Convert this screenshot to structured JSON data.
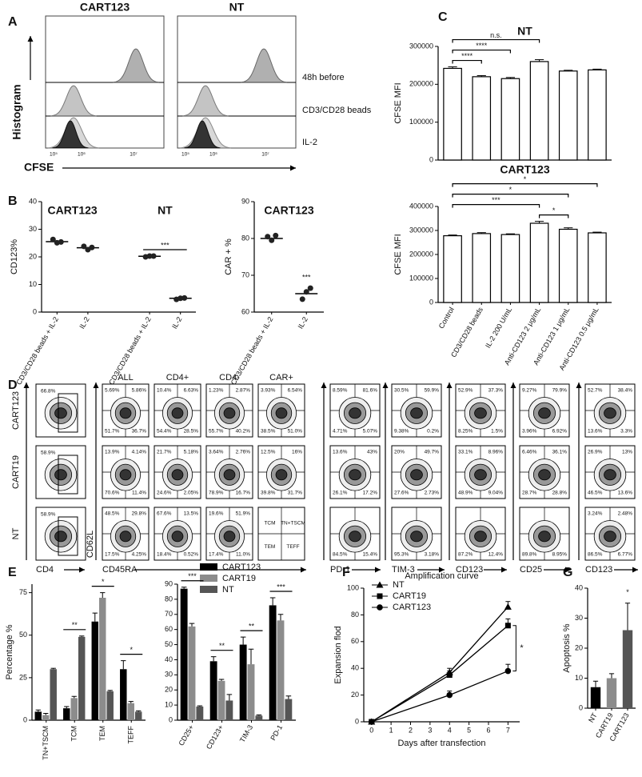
{
  "panel_labels": [
    "A",
    "B",
    "C",
    "D",
    "E",
    "F",
    "G"
  ],
  "histograms": {
    "titles": [
      "CART123",
      "NT"
    ],
    "rows": [
      "48h before",
      "CD3/CD28 beads",
      "IL-2"
    ],
    "ylabel": "Histogram",
    "xlabel": "CFSE",
    "xtick_labels": [
      "10⁵",
      "10⁶",
      "10⁷"
    ]
  },
  "flow": {
    "row_labels": [
      "CART123",
      "CART19",
      "NT"
    ],
    "column_titles": [
      "ALL",
      "CD4+",
      "CD4-",
      "CAR+"
    ],
    "gates": [
      "66.8%",
      "58.9%",
      "58.9%"
    ],
    "quadrants": [
      [
        [
          "5.69%",
          "5.86%",
          "51.7%",
          "36.7%"
        ],
        [
          "13.9%",
          "4.14%",
          "70.6%",
          "11.4%"
        ],
        [
          "48.5%",
          "29.8%",
          "17.5%",
          "4.25%"
        ]
      ],
      [
        [
          "10.4%",
          "6.63%",
          "54.4%",
          "28.5%"
        ],
        [
          "21.7%",
          "5.18%",
          "24.6%",
          "2.05%"
        ],
        [
          "67.6%",
          "13.5%",
          "18.4%",
          "0.52%"
        ]
      ],
      [
        [
          "1.23%",
          "2.87%",
          "55.7%",
          "40.2%"
        ],
        [
          "3.64%",
          "2.76%",
          "78.9%",
          "16.7%"
        ],
        [
          "19.6%",
          "51.9%",
          "17.4%",
          "11.0%"
        ]
      ],
      [
        [
          "3.93%",
          "6.54%",
          "38.5%",
          "51.0%"
        ],
        [
          "12.5%",
          "16%",
          "39.8%",
          "31.7%"
        ]
      ],
      [
        [
          "8.59%",
          "81.6%",
          "4.71%",
          "5.07%"
        ],
        [
          "13.6%",
          "43%",
          "26.1%",
          "17.2%"
        ],
        [
          "84.5%",
          "15.4%"
        ]
      ],
      [
        [
          "30.5%",
          "59.9%",
          "9.38%",
          "0.2%"
        ],
        [
          "20%",
          "49.7%",
          "27.6%",
          "2.73%"
        ],
        [
          "95.3%",
          "3.18%"
        ]
      ],
      [
        [
          "52.9%",
          "37.3%",
          "8.25%",
          "1.5%"
        ],
        [
          "33.1%",
          "8.96%",
          "48.9%",
          "9.04%"
        ],
        [
          "87.2%",
          "12.4%"
        ]
      ],
      [
        [
          "9.27%",
          "79.9%",
          "3.96%",
          "6.92%"
        ],
        [
          "6.46%",
          "36.1%",
          "28.7%",
          "28.8%"
        ],
        [
          "89.8%",
          "8.95%"
        ]
      ],
      [
        [
          "52.7%",
          "38.4%",
          "13.6%",
          "3.3%"
        ],
        [
          "26.9%",
          "13%",
          "46.5%",
          "13.6%"
        ],
        [
          "3.24%",
          "2.48%",
          "86.5%",
          "6.77%"
        ]
      ]
    ],
    "subset_legend": [
      "TCM",
      "TN+TSCM",
      "TEM",
      "TEFF"
    ],
    "x_labels": [
      "CD4",
      "CD45RA",
      "PD-1",
      "TIM-3",
      "CD123",
      "CD25",
      "CD123"
    ],
    "y_label": "CD62L"
  },
  "chart_data": [
    {
      "type": "dot",
      "ylabel": "CD123%",
      "group_labels": [
        "CART123",
        "NT"
      ],
      "categories": [
        "CD3/CD28 beads + IL-2",
        "IL-2",
        "CD3/CD28 beads + IL-2",
        "IL-2"
      ],
      "values": [
        25.5,
        23.3,
        20.2,
        5.0
      ],
      "points": [
        [
          26.3,
          25.1,
          25.4
        ],
        [
          23.8,
          22.6,
          23.4
        ],
        [
          20.0,
          20.3,
          20.3
        ],
        [
          4.6,
          5.0,
          5.1
        ]
      ],
      "ylim": [
        0,
        40
      ],
      "yticks": [
        0,
        10,
        20,
        30,
        40
      ],
      "annotations": [
        {
          "text": "***",
          "between": [
            2,
            3
          ]
        }
      ]
    },
    {
      "type": "dot",
      "title": "CART123",
      "ylabel": "CAR + %",
      "categories": [
        "CD3/CD28 beads + IL-2",
        "IL-2"
      ],
      "values": [
        80,
        65
      ],
      "points": [
        [
          80.5,
          79.5,
          80.8
        ],
        [
          63.5,
          65.5,
          66.5
        ]
      ],
      "ylim": [
        60,
        90
      ],
      "yticks": [
        60,
        70,
        80,
        90
      ],
      "annotations": [
        {
          "text": "***",
          "category": 1
        }
      ]
    },
    {
      "type": "bar",
      "title": "NT",
      "ylabel": "CFSE MFI",
      "categories": [
        null,
        null,
        null,
        null,
        null,
        null
      ],
      "values": [
        242000,
        220000,
        215000,
        260000,
        235000,
        238000
      ],
      "errors": [
        4000,
        3000,
        3000,
        5000,
        2000,
        2000
      ],
      "color": "#ffffff",
      "edgecolor": "#000000",
      "ylim": [
        0,
        300000
      ],
      "yticks": [
        0,
        100000,
        200000,
        300000
      ],
      "annotations": [
        {
          "text": "****",
          "between": [
            0,
            1
          ]
        },
        {
          "text": "****",
          "between": [
            0,
            2
          ]
        },
        {
          "text": "n.s.",
          "between": [
            0,
            3
          ]
        }
      ]
    },
    {
      "type": "bar",
      "title": "CART123",
      "ylabel": "CFSE MFI",
      "categories": [
        "Control",
        "CD3/CD28 beads",
        "IL-2 200 U/mL",
        "Anti-CD123 2 μg/mL",
        "Anti-CD123 1 μg/mL",
        "Anti-CD123 0.5 μg/mL"
      ],
      "values": [
        278000,
        287000,
        283000,
        330000,
        305000,
        290000
      ],
      "errors": [
        3000,
        4000,
        3000,
        8000,
        6000,
        3000
      ],
      "color": "#ffffff",
      "edgecolor": "#000000",
      "ylim": [
        0,
        400000
      ],
      "yticks": [
        0,
        100000,
        200000,
        300000,
        400000
      ],
      "annotations": [
        {
          "text": "*",
          "between": [
            3,
            4
          ]
        },
        {
          "text": "***",
          "between": [
            0,
            3
          ]
        },
        {
          "text": "*",
          "between": [
            0,
            4
          ]
        },
        {
          "text": "*",
          "between": [
            0,
            5
          ]
        }
      ]
    },
    {
      "type": "bar",
      "ylabel": "Percentage %",
      "categories": [
        "TN+TSCM",
        "TCM",
        "TEM",
        "TEFF"
      ],
      "series": [
        {
          "name": "CART123",
          "color": "#000000",
          "values": [
            5,
            7,
            58,
            30
          ],
          "errors": [
            1,
            1,
            5,
            5
          ]
        },
        {
          "name": "CART19",
          "color": "#8c8c8c",
          "values": [
            3,
            13,
            72,
            10
          ],
          "errors": [
            1,
            1,
            3,
            1
          ]
        },
        {
          "name": "NT",
          "color": "#555555",
          "values": [
            30,
            49,
            17,
            5
          ],
          "errors": [
            0.5,
            0.5,
            0.5,
            0.5
          ]
        }
      ],
      "ylim": [
        0,
        80
      ],
      "yticks": [
        0,
        25,
        50,
        75
      ],
      "annotations": [
        {
          "text": "**",
          "category": 1
        },
        {
          "text": "*",
          "category": 2
        },
        {
          "text": "*",
          "category": 3
        }
      ]
    },
    {
      "type": "bar",
      "categories": [
        "CD25+",
        "CD123+",
        "TIM-3",
        "PD-1"
      ],
      "series": [
        {
          "name": "CART123",
          "color": "#000000",
          "values": [
            87,
            39,
            50,
            76
          ],
          "errors": [
            1,
            3,
            5,
            5
          ]
        },
        {
          "name": "CART19",
          "color": "#8c8c8c",
          "values": [
            62,
            26,
            37,
            66
          ],
          "errors": [
            2,
            1,
            10,
            4
          ]
        },
        {
          "name": "NT",
          "color": "#555555",
          "values": [
            9,
            13,
            3,
            14
          ],
          "errors": [
            0.5,
            4,
            0.5,
            2
          ]
        }
      ],
      "ylim": [
        0,
        90
      ],
      "yticks": [
        0,
        10,
        20,
        30,
        40,
        50,
        60,
        70,
        80,
        90
      ],
      "legend": "upper right",
      "annotations": [
        {
          "text": "***",
          "category": 0
        },
        {
          "text": "**",
          "category": 1
        },
        {
          "text": "**",
          "category": 2
        },
        {
          "text": "***",
          "category": 3
        }
      ]
    },
    {
      "type": "line",
      "title": "Amplification curve",
      "xlabel": "Days after transfection",
      "ylabel": "Expansion flod",
      "x": [
        0,
        4,
        7
      ],
      "series": [
        {
          "name": "NT",
          "color": "#000000",
          "marker": "triangle",
          "values": [
            0,
            37,
            86
          ],
          "errors": [
            0,
            3,
            4
          ]
        },
        {
          "name": "CART19",
          "color": "#000000",
          "marker": "square",
          "values": [
            0,
            35,
            72
          ],
          "errors": [
            0,
            3,
            5
          ]
        },
        {
          "name": "CART123",
          "color": "#000000",
          "marker": "circle",
          "values": [
            0,
            20,
            38
          ],
          "errors": [
            0,
            3,
            5
          ]
        }
      ],
      "xlim": [
        -0.4,
        7.6
      ],
      "xticks": [
        0,
        1,
        2,
        3,
        4,
        5,
        6,
        7
      ],
      "ylim": [
        0,
        100
      ],
      "yticks": [
        0,
        20,
        40,
        60,
        80,
        100
      ],
      "legend": "upper left",
      "annotations": [
        {
          "text": "*",
          "between": [
            1,
            2
          ]
        }
      ]
    },
    {
      "type": "bar",
      "ylabel": "Apoptosis %",
      "categories": [
        "NT",
        "CART19",
        "CART123"
      ],
      "values": [
        7,
        10,
        26
      ],
      "errors": [
        2,
        1.5,
        9
      ],
      "colors": [
        "#000000",
        "#8c8c8c",
        "#555555"
      ],
      "ylim": [
        0,
        40
      ],
      "yticks": [
        0,
        10,
        20,
        30,
        40
      ],
      "annotations": [
        {
          "text": "*",
          "category": 2
        }
      ]
    }
  ]
}
